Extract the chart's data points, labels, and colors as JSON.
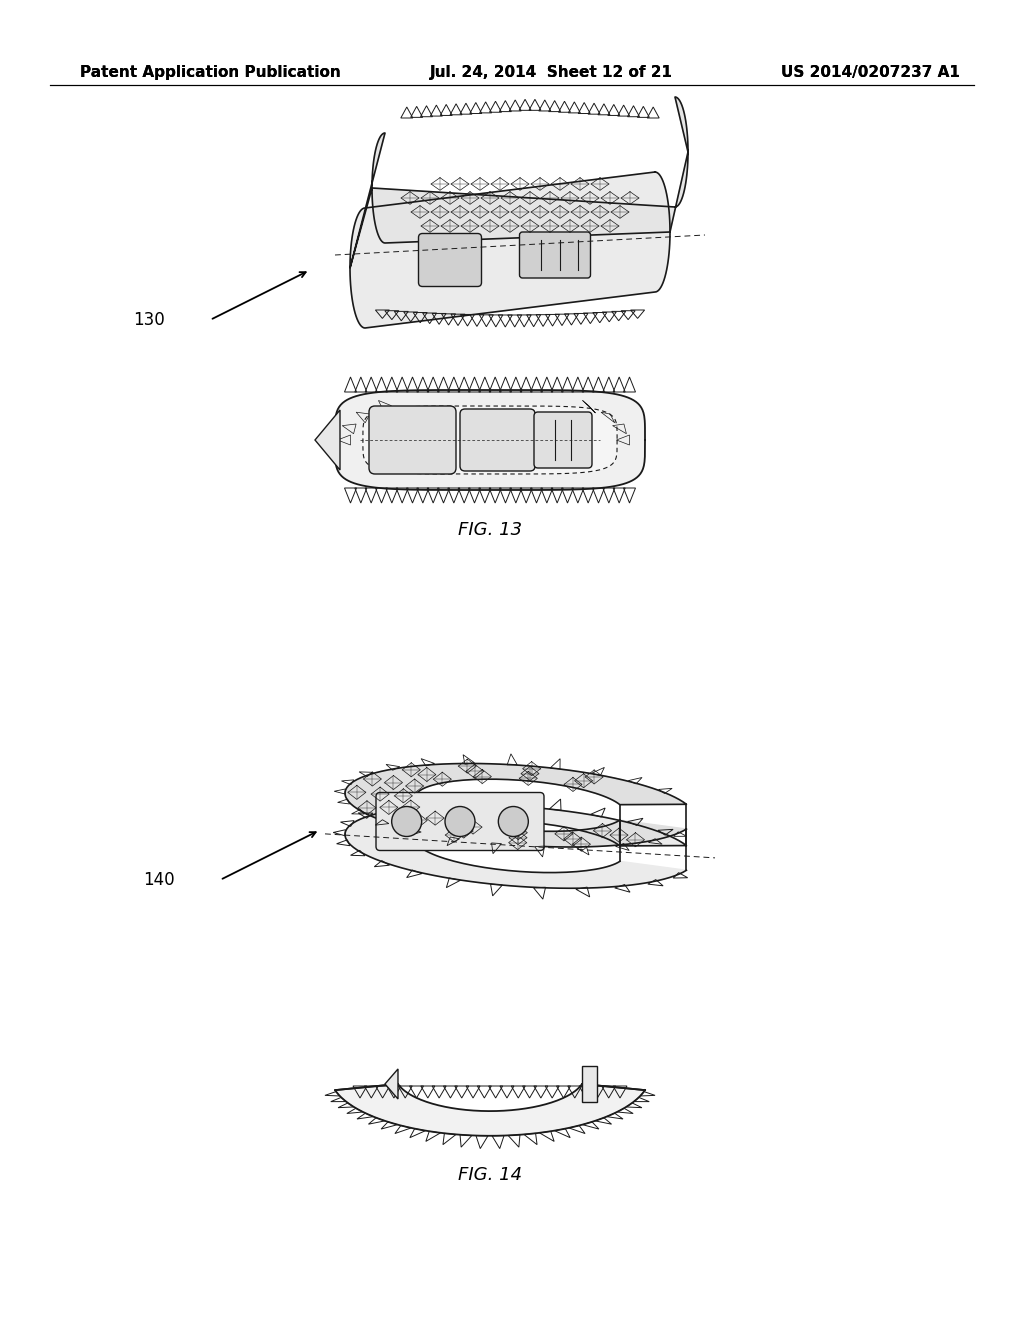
{
  "background_color": "#ffffff",
  "header_left": "Patent Application Publication",
  "header_center": "Jul. 24, 2014  Sheet 12 of 21",
  "header_right": "US 2014/0207237 A1",
  "fig13_label": "FIG. 13",
  "fig14_label": "FIG. 14",
  "ref130": "130",
  "ref140": "140",
  "header_fontsize": 11,
  "label_fontsize": 13,
  "ref_fontsize": 12,
  "line_color": "#1a1a1a",
  "fill_color": "#f5f5f5",
  "shadow_color": "#d0d0d0"
}
